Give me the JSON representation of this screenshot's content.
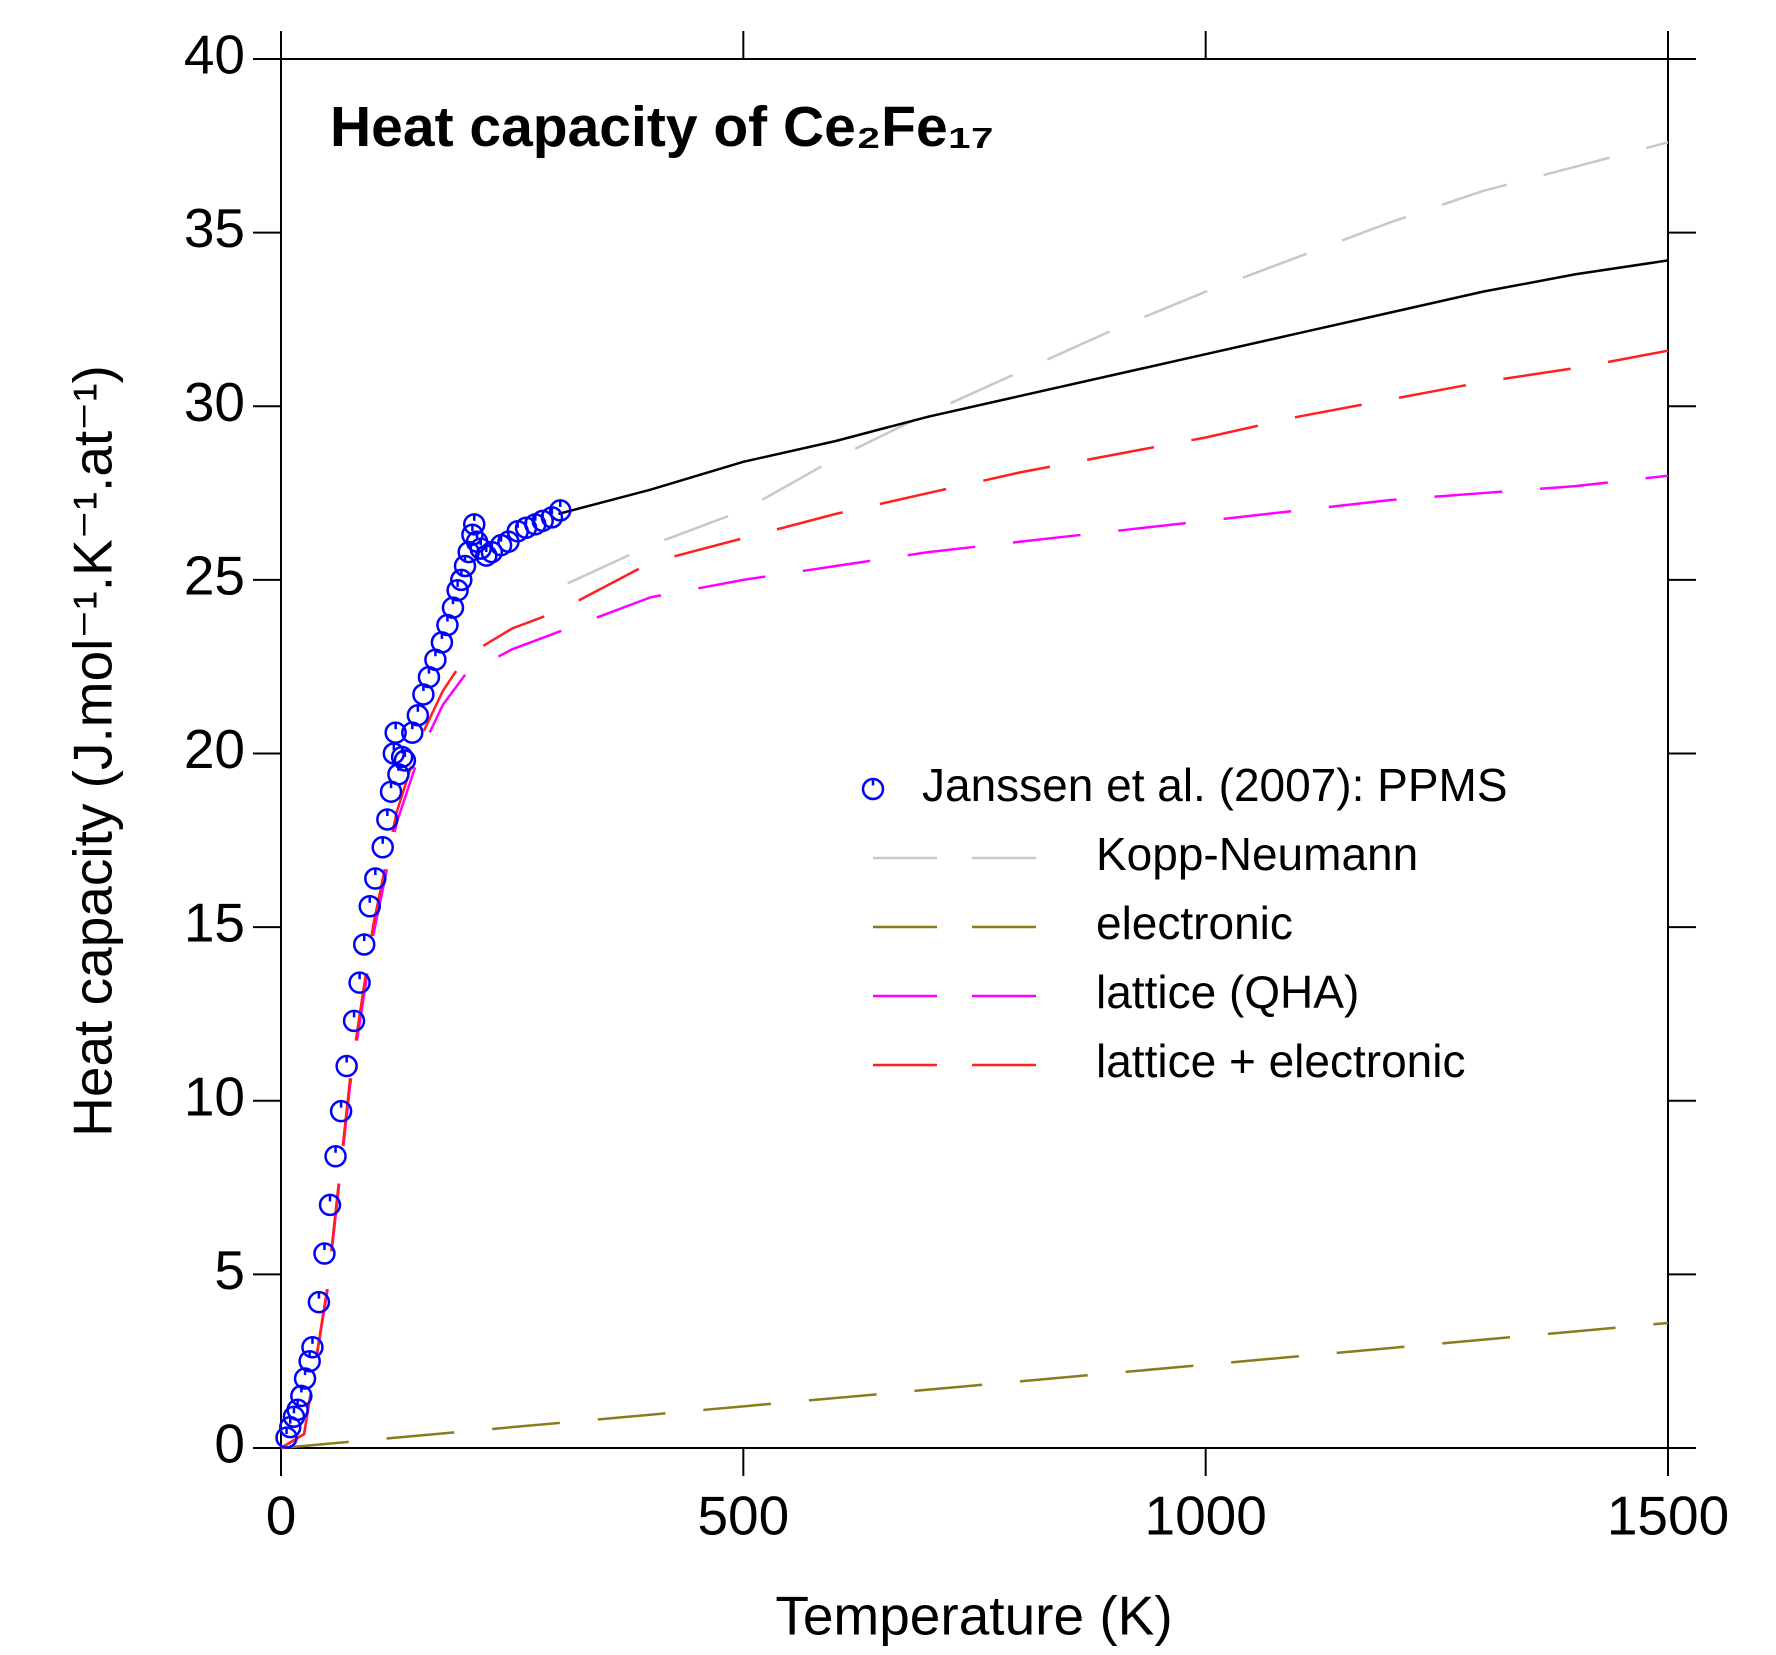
{
  "chart_data": {
    "type": "line",
    "title": "Heat capacity of Ce₂Fe₁₇",
    "x_label": "Temperature (K)",
    "y_label": "Heat capacity (J.mol⁻¹.K⁻¹.at⁻¹)",
    "xlim": [
      0,
      1500
    ],
    "xticks": [
      0,
      500,
      1000,
      1500
    ],
    "ylim": [
      0,
      40
    ],
    "yticks": [
      0,
      5,
      10,
      15,
      20,
      25,
      30,
      35,
      40
    ],
    "series": [
      {
        "name": "Janssen et al. (2007): PPMS",
        "type": "scatter",
        "color": "#0000ff",
        "x": [
          6,
          10,
          14,
          18,
          22,
          26,
          31,
          34,
          41,
          47,
          53,
          59,
          65,
          71,
          79,
          85,
          90,
          96,
          102,
          110,
          115,
          119,
          122,
          124,
          127,
          131,
          134,
          142,
          148,
          154,
          160,
          167,
          174,
          180,
          186,
          191,
          195,
          199,
          203,
          207,
          209,
          212,
          216,
          222,
          228,
          238,
          246,
          256,
          265,
          275,
          283,
          293,
          302
        ],
        "values": [
          0.3,
          0.6,
          0.9,
          1.1,
          1.5,
          2.0,
          2.5,
          2.9,
          4.2,
          5.6,
          7.0,
          8.4,
          9.7,
          11.0,
          12.3,
          13.4,
          14.5,
          15.6,
          16.4,
          17.3,
          18.1,
          18.9,
          20.0,
          20.6,
          19.4,
          19.9,
          19.8,
          20.6,
          21.1,
          21.7,
          22.2,
          22.7,
          23.2,
          23.7,
          24.2,
          24.7,
          25.0,
          25.4,
          25.8,
          26.3,
          26.6,
          26.1,
          25.9,
          25.7,
          25.8,
          26.0,
          26.1,
          26.4,
          26.5,
          26.6,
          26.7,
          26.8,
          27.0
        ]
      },
      {
        "name": "Kopp-Neumann",
        "color": "#c8c8c8",
        "dashed": true,
        "x": [
          310,
          400,
          500,
          600,
          700,
          800,
          900,
          1000,
          1100,
          1200,
          1300,
          1400,
          1500
        ],
        "values": [
          24.9,
          26.0,
          27.0,
          28.5,
          29.8,
          31.0,
          32.2,
          33.3,
          34.3,
          35.3,
          36.2,
          36.9,
          37.6
        ]
      },
      {
        "name": "electronic",
        "color": "#8c7b1a",
        "dashed": true,
        "x": [
          0,
          250,
          500,
          750,
          1000,
          1250,
          1500
        ],
        "values": [
          0,
          0.6,
          1.2,
          1.8,
          2.4,
          3.0,
          3.6
        ]
      },
      {
        "name": "lattice (QHA)",
        "color": "#ff00ff",
        "dashed": true,
        "x": [
          0,
          25,
          50,
          75,
          100,
          125,
          150,
          175,
          200,
          250,
          300,
          400,
          500,
          600,
          700,
          800,
          900,
          1000,
          1100,
          1200,
          1300,
          1400,
          1500
        ],
        "values": [
          0,
          0.4,
          4.5,
          10.5,
          14.8,
          18.0,
          20.0,
          21.4,
          22.3,
          23.0,
          23.5,
          24.5,
          25.0,
          25.4,
          25.8,
          26.1,
          26.4,
          26.7,
          27.0,
          27.3,
          27.5,
          27.7,
          28.0
        ]
      },
      {
        "name": "lattice + electronic",
        "color": "#ff2020",
        "dashed": true,
        "x": [
          0,
          25,
          50,
          75,
          100,
          125,
          150,
          175,
          200,
          250,
          300,
          400,
          500,
          600,
          700,
          800,
          900,
          1000,
          1100,
          1200,
          1300,
          1400,
          1500
        ],
        "values": [
          0,
          0.4,
          4.6,
          10.7,
          15.1,
          18.3,
          20.4,
          21.8,
          22.8,
          23.6,
          24.1,
          25.5,
          26.2,
          26.9,
          27.5,
          28.1,
          28.6,
          29.1,
          29.7,
          30.2,
          30.7,
          31.1,
          31.6
        ]
      },
      {
        "color": "#000000",
        "x": [
          300,
          400,
          500,
          600,
          700,
          800,
          900,
          1000,
          1100,
          1200,
          1300,
          1400,
          1500
        ],
        "values": [
          26.9,
          27.6,
          28.4,
          29.0,
          29.7,
          30.3,
          30.9,
          31.5,
          32.1,
          32.7,
          33.3,
          33.8,
          34.2
        ]
      }
    ]
  }
}
